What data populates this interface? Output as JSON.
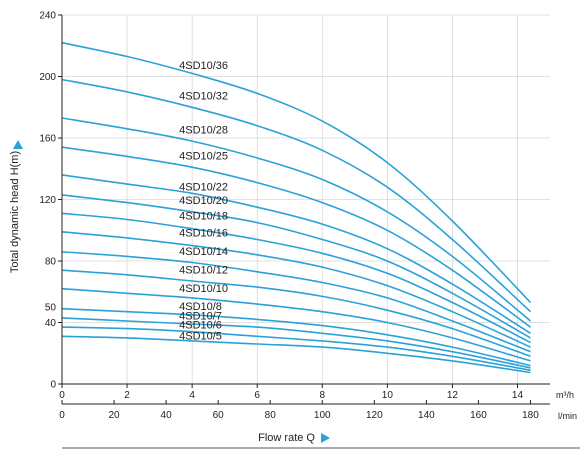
{
  "chart_data": {
    "type": "line",
    "title": "",
    "ylabel": "Total dynamic head H(m)",
    "xlabel": "Flow rate Q",
    "x_units": [
      "m³/h",
      "l/min"
    ],
    "x_ticks_m3h": [
      0,
      2,
      4,
      6,
      8,
      10,
      12,
      14
    ],
    "x_ticks_lmin": [
      0,
      20,
      40,
      60,
      80,
      100,
      120,
      140,
      160,
      180
    ],
    "y_ticks": [
      0,
      40,
      80,
      120,
      160,
      200,
      240
    ],
    "extra_y_tick": 50,
    "xlim": [
      0,
      15
    ],
    "ylim": [
      0,
      240
    ],
    "grid": true,
    "accent_color": "#2aa2d8",
    "x": [
      0,
      2,
      4,
      6,
      8,
      10,
      12,
      14.4
    ],
    "series": [
      {
        "name": "4SD10/36",
        "values": [
          222,
          213,
          202,
          189,
          171,
          144,
          106,
          53
        ]
      },
      {
        "name": "4SD10/32",
        "values": [
          198,
          190,
          180,
          168,
          152,
          128,
          94,
          47
        ]
      },
      {
        "name": "4SD10/28",
        "values": [
          173,
          166,
          158,
          147,
          133,
          112,
          83,
          41
        ]
      },
      {
        "name": "4SD10/25",
        "values": [
          154,
          148,
          141,
          131,
          118,
          100,
          74,
          37
        ]
      },
      {
        "name": "4SD10/22",
        "values": [
          136,
          130,
          124,
          115,
          104,
          88,
          65,
          33
        ]
      },
      {
        "name": "4SD10/20",
        "values": [
          123,
          118,
          112,
          105,
          94,
          80,
          59,
          30
        ]
      },
      {
        "name": "4SD10/18",
        "values": [
          111,
          107,
          101,
          94,
          85,
          72,
          53,
          27
        ]
      },
      {
        "name": "4SD10/16",
        "values": [
          99,
          95,
          90,
          84,
          76,
          64,
          47,
          24
        ]
      },
      {
        "name": "4SD10/14",
        "values": [
          86,
          83,
          79,
          73,
          66,
          56,
          41,
          21
        ]
      },
      {
        "name": "4SD10/12",
        "values": [
          74,
          71,
          67,
          63,
          57,
          48,
          36,
          18
        ]
      },
      {
        "name": "4SD10/10",
        "values": [
          62,
          59,
          56,
          52,
          47,
          40,
          30,
          15
        ]
      },
      {
        "name": "4SD10/8",
        "values": [
          49,
          47,
          45,
          42,
          38,
          32,
          24,
          12
        ]
      },
      {
        "name": "4SD10/7",
        "values": [
          43,
          41,
          39,
          37,
          33,
          28,
          21,
          10.5
        ]
      },
      {
        "name": "4SD10/6",
        "values": [
          37,
          36,
          34,
          31,
          28,
          24,
          18,
          9
        ]
      },
      {
        "name": "4SD10/5",
        "values": [
          31,
          30,
          28,
          26,
          24,
          20,
          15,
          7.5
        ]
      }
    ],
    "label_x_m3h": 3.6,
    "label_y_values": [
      205,
      185,
      163,
      146,
      126,
      117,
      107,
      96,
      84,
      72,
      60,
      48,
      42,
      36,
      29
    ]
  }
}
